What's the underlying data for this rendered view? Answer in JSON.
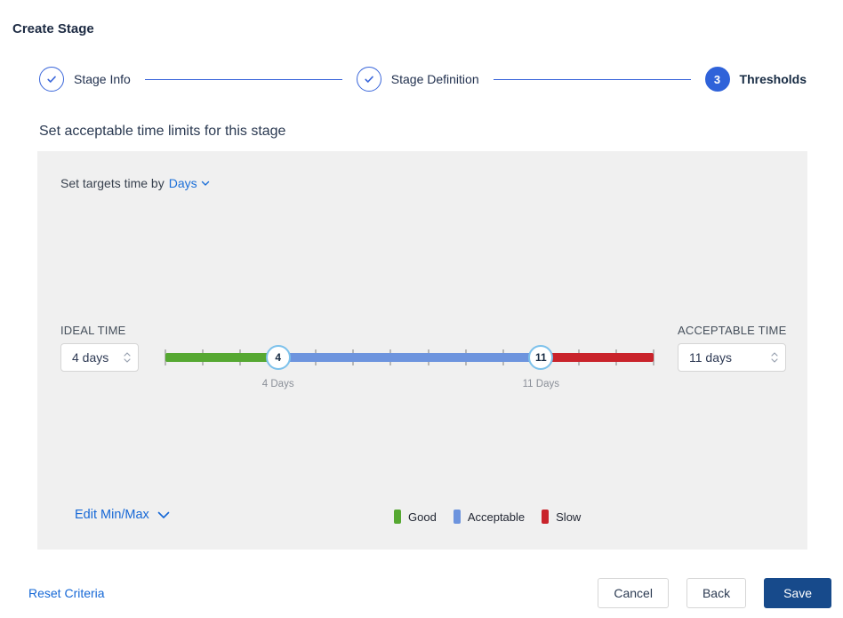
{
  "title": "Create Stage",
  "stepper": {
    "steps": [
      {
        "label": "Stage Info",
        "state": "completed"
      },
      {
        "label": "Stage Definition",
        "state": "completed"
      },
      {
        "label": "Thresholds",
        "state": "active",
        "number": "3"
      }
    ]
  },
  "section": {
    "heading": "Set acceptable time limits for this stage"
  },
  "panel": {
    "targets_prefix": "Set targets time by",
    "unit_selected": "Days",
    "ideal": {
      "label": "IDEAL TIME",
      "value": "4 days"
    },
    "acceptable": {
      "label": "ACCEPTABLE TIME",
      "value": "11 days"
    },
    "slider": {
      "min": 1,
      "max": 14,
      "ideal_value": 4,
      "acceptable_value": 11,
      "ideal_handle_label": "4",
      "acceptable_handle_label": "11",
      "ideal_caption": "4 Days",
      "acceptable_caption": "11 Days",
      "colors": {
        "good": "#56A832",
        "acceptable": "#6D94DE",
        "slow": "#C9232B"
      },
      "tick_color": "#B8B8B8"
    },
    "edit_minmax_label": "Edit Min/Max",
    "legend": [
      {
        "label": "Good",
        "color": "#56A832"
      },
      {
        "label": "Acceptable",
        "color": "#6D94DE"
      },
      {
        "label": "Slow",
        "color": "#C9232B"
      }
    ]
  },
  "footer": {
    "reset_label": "Reset Criteria",
    "cancel_label": "Cancel",
    "back_label": "Back",
    "save_label": "Save"
  },
  "colors": {
    "accent_blue": "#2F62D9",
    "link_blue": "#1668D6",
    "save_navy": "#174A8B",
    "panel_bg": "#F0F0F0"
  }
}
